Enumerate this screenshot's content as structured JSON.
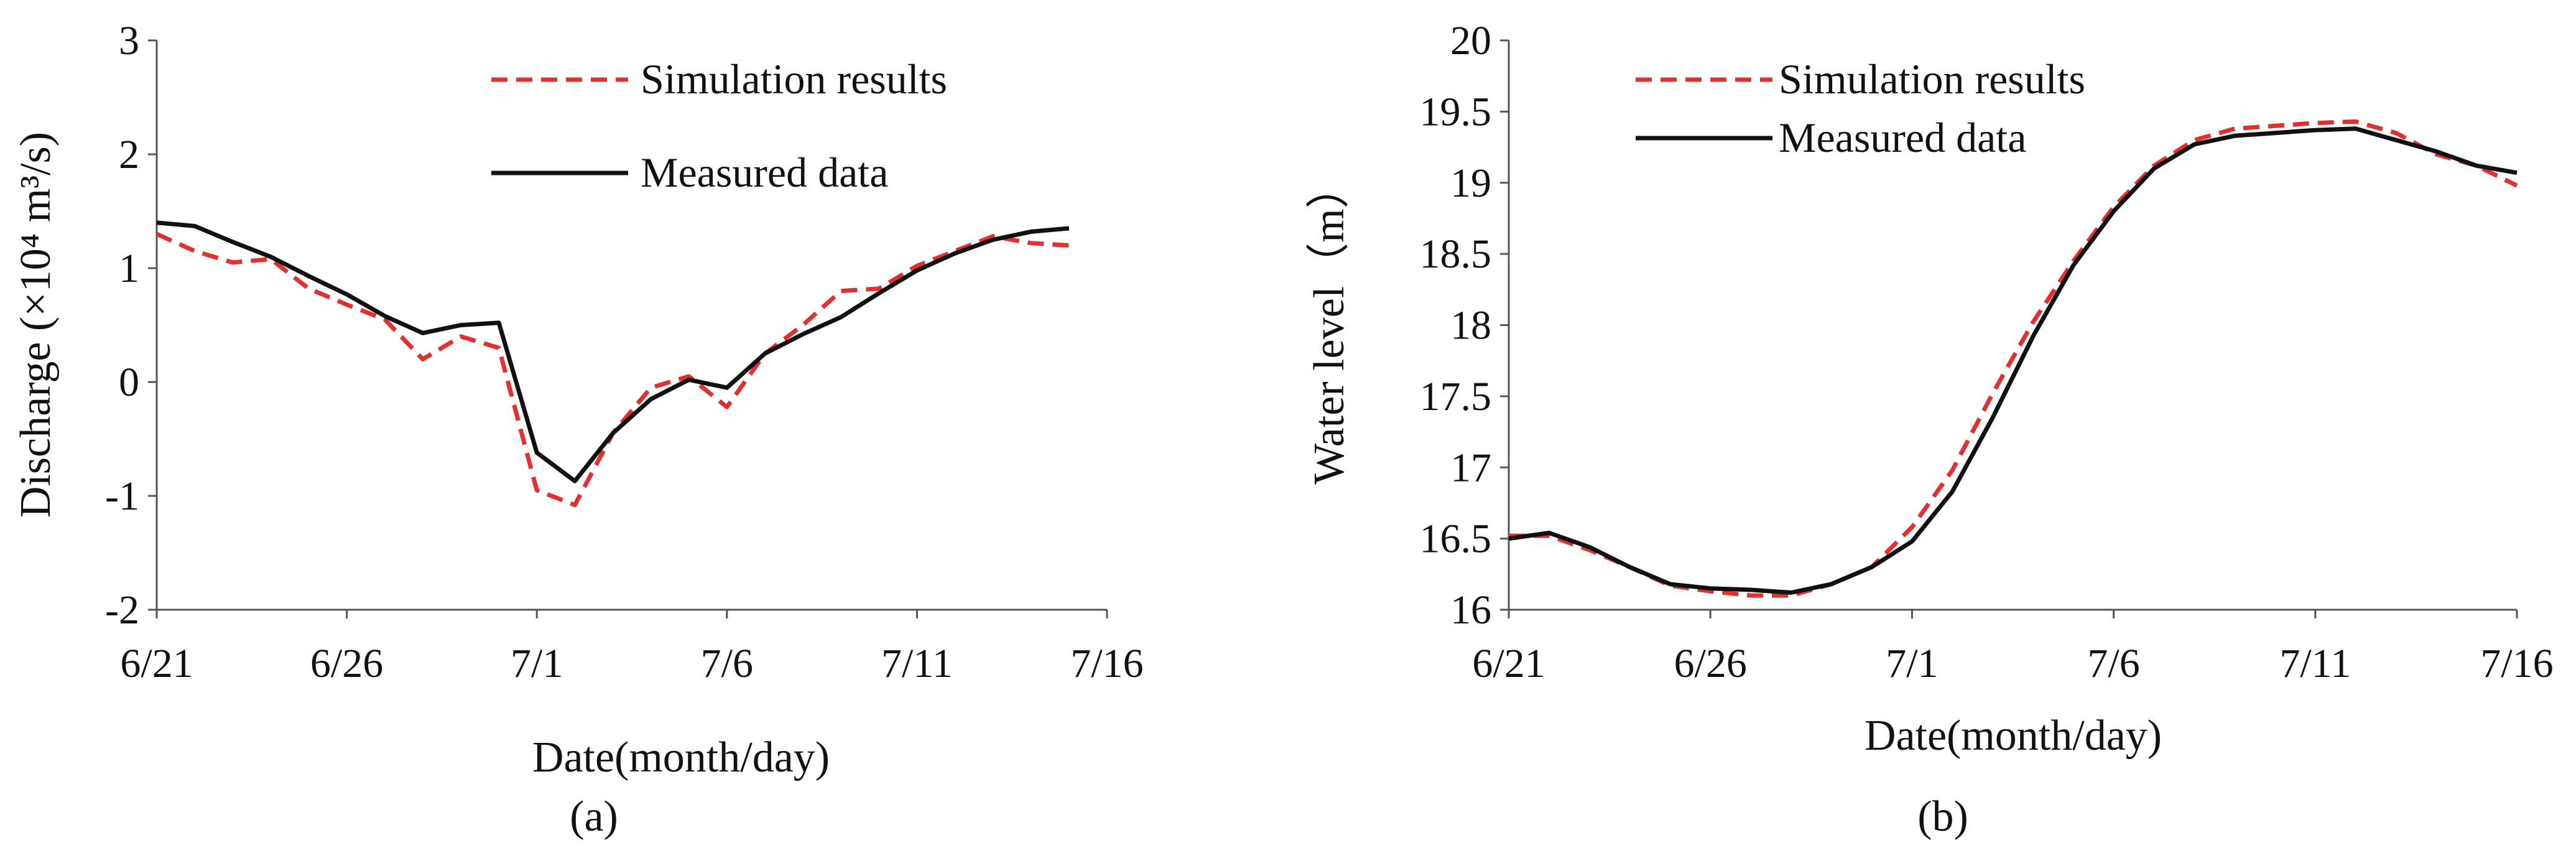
{
  "chart_data": [
    {
      "type": "line",
      "panel_label": "(a)",
      "xlabel": "Date(month/day)",
      "ylabel": "Discharge (×10⁴ m³/s)",
      "x_tick_labels": [
        "6/21",
        "6/26",
        "7/1",
        "7/6",
        "7/11",
        "7/16"
      ],
      "xlim": [
        0,
        25
      ],
      "ylim": [
        -2,
        3
      ],
      "y_ticks": [
        -2,
        -1,
        0,
        1,
        2,
        3
      ],
      "legend": "top-center",
      "grid": false,
      "series": [
        {
          "name": "Simulation results",
          "style": "dashed",
          "color": "#e03030",
          "x": [
            0,
            1,
            2,
            3,
            4,
            5,
            6,
            7,
            8,
            9,
            10,
            11,
            12,
            13,
            14,
            15,
            16,
            17,
            18,
            19,
            20,
            21,
            22,
            23,
            24
          ],
          "y": [
            1.3,
            1.15,
            1.05,
            1.08,
            0.82,
            0.68,
            0.55,
            0.2,
            0.4,
            0.3,
            -0.95,
            -1.08,
            -0.45,
            -0.05,
            0.05,
            -0.22,
            0.25,
            0.5,
            0.8,
            0.82,
            1.02,
            1.15,
            1.28,
            1.22,
            1.2
          ]
        },
        {
          "name": "Measured data",
          "style": "solid",
          "color": "#111111",
          "x": [
            0,
            1,
            2,
            3,
            4,
            5,
            6,
            7,
            8,
            9,
            10,
            11,
            12,
            13,
            14,
            15,
            16,
            17,
            18,
            19,
            20,
            21,
            22,
            23,
            24
          ],
          "y": [
            1.4,
            1.37,
            1.23,
            1.1,
            0.93,
            0.77,
            0.58,
            0.43,
            0.5,
            0.52,
            -0.62,
            -0.87,
            -0.45,
            -0.15,
            0.02,
            -0.05,
            0.25,
            0.42,
            0.57,
            0.78,
            0.98,
            1.13,
            1.25,
            1.32,
            1.35
          ]
        }
      ]
    },
    {
      "type": "line",
      "panel_label": "(b)",
      "xlabel": "Date(month/day)",
      "ylabel": "Water level（m）",
      "x_tick_labels": [
        "6/21",
        "6/26",
        "7/1",
        "7/6",
        "7/11",
        "7/16"
      ],
      "xlim": [
        0,
        25
      ],
      "ylim": [
        16,
        20
      ],
      "y_ticks": [
        16,
        16.5,
        17,
        17.5,
        18,
        18.5,
        19,
        19.5,
        20
      ],
      "legend": "top-left",
      "grid": false,
      "series": [
        {
          "name": "Simulation results",
          "style": "dashed",
          "color": "#e03030",
          "x": [
            0,
            1,
            2,
            3,
            4,
            5,
            6,
            7,
            8,
            9,
            10,
            11,
            12,
            13,
            14,
            15,
            16,
            17,
            18,
            19,
            20,
            21,
            22,
            23,
            24,
            25
          ],
          "y": [
            16.52,
            16.52,
            16.42,
            16.3,
            16.17,
            16.13,
            16.1,
            16.1,
            16.18,
            16.3,
            16.58,
            16.98,
            17.52,
            18.02,
            18.45,
            18.83,
            19.12,
            19.3,
            19.38,
            19.4,
            19.42,
            19.43,
            19.35,
            19.2,
            19.12,
            18.98
          ]
        },
        {
          "name": "Measured data",
          "style": "solid",
          "color": "#111111",
          "x": [
            0,
            1,
            2,
            3,
            4,
            5,
            6,
            7,
            8,
            9,
            10,
            11,
            12,
            13,
            14,
            15,
            16,
            17,
            18,
            19,
            20,
            21,
            22,
            23,
            24,
            25
          ],
          "y": [
            16.5,
            16.54,
            16.44,
            16.3,
            16.18,
            16.15,
            16.14,
            16.12,
            16.18,
            16.3,
            16.48,
            16.83,
            17.35,
            17.92,
            18.42,
            18.8,
            19.1,
            19.27,
            19.33,
            19.35,
            19.37,
            19.38,
            19.3,
            19.22,
            19.12,
            19.07
          ]
        }
      ]
    }
  ]
}
